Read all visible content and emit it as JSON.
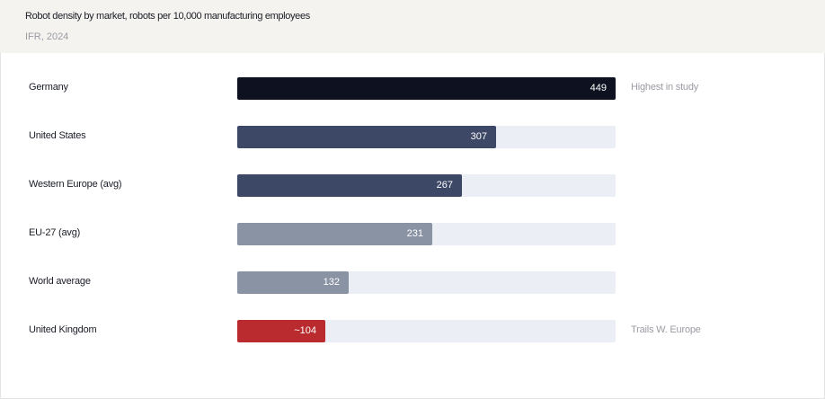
{
  "chart": {
    "title": "Robot density by market, robots per 10,000 manufacturing employees",
    "source": "IFR, 2024"
  },
  "chart_data": {
    "type": "bar",
    "orientation": "horizontal",
    "title": "Robot density by market, robots per 10,000 manufacturing employees",
    "source": "IFR, 2024",
    "categories": [
      "Germany",
      "United States",
      "Western Europe (avg)",
      "EU-27 (avg)",
      "World average",
      "United Kingdom"
    ],
    "values": [
      449,
      307,
      267,
      231,
      132,
      104
    ],
    "value_labels": [
      "449",
      "307",
      "267",
      "231",
      "132",
      "~104"
    ],
    "notes": [
      "Highest in study",
      "",
      "",
      "",
      "",
      "Trails W. Europe"
    ],
    "colors": [
      "#0e1220",
      "#3d4766",
      "#3d4766",
      "#8a93a3",
      "#8a93a3",
      "#b92b2e"
    ],
    "track_color": "#eceef5",
    "xlim": [
      0,
      449
    ],
    "grid": false,
    "legend": "none"
  }
}
